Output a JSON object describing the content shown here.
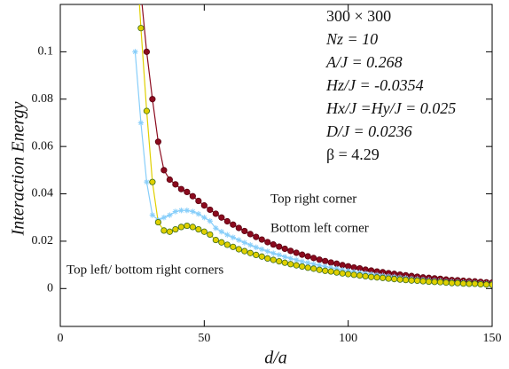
{
  "chart_data": {
    "type": "line",
    "xlabel": "d/a",
    "ylabel": "Interaction Energy",
    "xlim": [
      0,
      150
    ],
    "ylim": [
      -0.016,
      0.12
    ],
    "xticks": [
      0,
      50,
      100,
      150
    ],
    "yticks": [
      0,
      0.02,
      0.04,
      0.06,
      0.08,
      0.1
    ],
    "annotations": [
      "Top right corner",
      "Bottom left corner",
      "Top left/ bottom right corners"
    ],
    "parameters": [
      "300 × 300",
      "Nz = 10",
      "A/J = 0.268",
      "Hz/J = -0.0354",
      "Hx/J =Hy/J = 0.025",
      "D/J = 0.0236",
      "β = 4.29"
    ],
    "x": [
      26,
      28,
      30,
      32,
      34,
      36,
      38,
      40,
      42,
      44,
      46,
      48,
      50,
      52,
      54,
      56,
      58,
      60,
      62,
      64,
      66,
      68,
      70,
      72,
      74,
      76,
      78,
      80,
      82,
      84,
      86,
      88,
      90,
      92,
      94,
      96,
      98,
      100,
      102,
      104,
      106,
      108,
      110,
      112,
      114,
      116,
      118,
      120,
      122,
      124,
      126,
      128,
      130,
      132,
      134,
      136,
      138,
      140,
      142,
      144,
      146,
      148,
      150
    ],
    "series": [
      {
        "name": "Top right corner",
        "color": "#8b0a1e",
        "edge": "#5a0010",
        "marker": "circle",
        "values": [
          0.16,
          0.125,
          0.1,
          0.08,
          0.062,
          0.05,
          0.046,
          0.044,
          0.042,
          0.0408,
          0.039,
          0.037,
          0.0351,
          0.0333,
          0.0316,
          0.03,
          0.0284,
          0.027,
          0.0256,
          0.0243,
          0.023,
          0.0218,
          0.0207,
          0.0196,
          0.0186,
          0.0177,
          0.0168,
          0.0159,
          0.0151,
          0.0143,
          0.0136,
          0.0129,
          0.0122,
          0.0116,
          0.011,
          0.0105,
          0.0099,
          0.0094,
          0.0089,
          0.0085,
          0.008,
          0.0076,
          0.0072,
          0.0069,
          0.0065,
          0.0062,
          0.0059,
          0.0056,
          0.0053,
          0.005,
          0.0047,
          0.0045,
          0.0043,
          0.0041,
          0.0038,
          0.0036,
          0.0035,
          0.0033,
          0.0031,
          0.003,
          0.0028,
          0.0026,
          0.0025
        ]
      },
      {
        "name": "Bottom left corner",
        "color": "#87cefa",
        "edge": "#87cefa",
        "marker": "asterisk",
        "values": [
          0.1,
          0.07,
          0.045,
          0.031,
          0.029,
          0.03,
          0.031,
          0.0325,
          0.033,
          0.033,
          0.0325,
          0.0315,
          0.03,
          0.0285,
          0.0255,
          0.024,
          0.0227,
          0.0216,
          0.0205,
          0.0194,
          0.0184,
          0.0174,
          0.0166,
          0.0157,
          0.0149,
          0.0142,
          0.0134,
          0.0127,
          0.0121,
          0.0114,
          0.0109,
          0.0103,
          0.0098,
          0.0093,
          0.0088,
          0.0084,
          0.0079,
          0.0075,
          0.0071,
          0.0068,
          0.0064,
          0.0061,
          0.0058,
          0.0055,
          0.0052,
          0.005,
          0.0047,
          0.0045,
          0.0042,
          0.004,
          0.0038,
          0.0036,
          0.0034,
          0.0033,
          0.003,
          0.0029,
          0.0028,
          0.0026,
          0.0025,
          0.0024,
          0.0022,
          0.0021,
          0.002
        ]
      },
      {
        "name": "Top left/ bottom right corners",
        "color": "#e0d000",
        "edge": "#3b6b1a",
        "marker": "circle",
        "values": [
          0.15,
          0.11,
          0.075,
          0.045,
          0.028,
          0.0245,
          0.024,
          0.025,
          0.026,
          0.0265,
          0.026,
          0.025,
          0.024,
          0.0228,
          0.0205,
          0.0195,
          0.0185,
          0.0176,
          0.0166,
          0.0158,
          0.015,
          0.0142,
          0.0135,
          0.0127,
          0.0121,
          0.0115,
          0.0109,
          0.0103,
          0.0098,
          0.0093,
          0.0088,
          0.0084,
          0.0079,
          0.0075,
          0.0072,
          0.0068,
          0.0064,
          0.0061,
          0.0058,
          0.0055,
          0.0052,
          0.0049,
          0.0047,
          0.0045,
          0.0042,
          0.004,
          0.0038,
          0.0036,
          0.0034,
          0.0033,
          0.0031,
          0.0029,
          0.0028,
          0.0027,
          0.0025,
          0.0023,
          0.0023,
          0.0021,
          0.002,
          0.002,
          0.0018,
          0.0017,
          0.0016
        ]
      }
    ]
  }
}
